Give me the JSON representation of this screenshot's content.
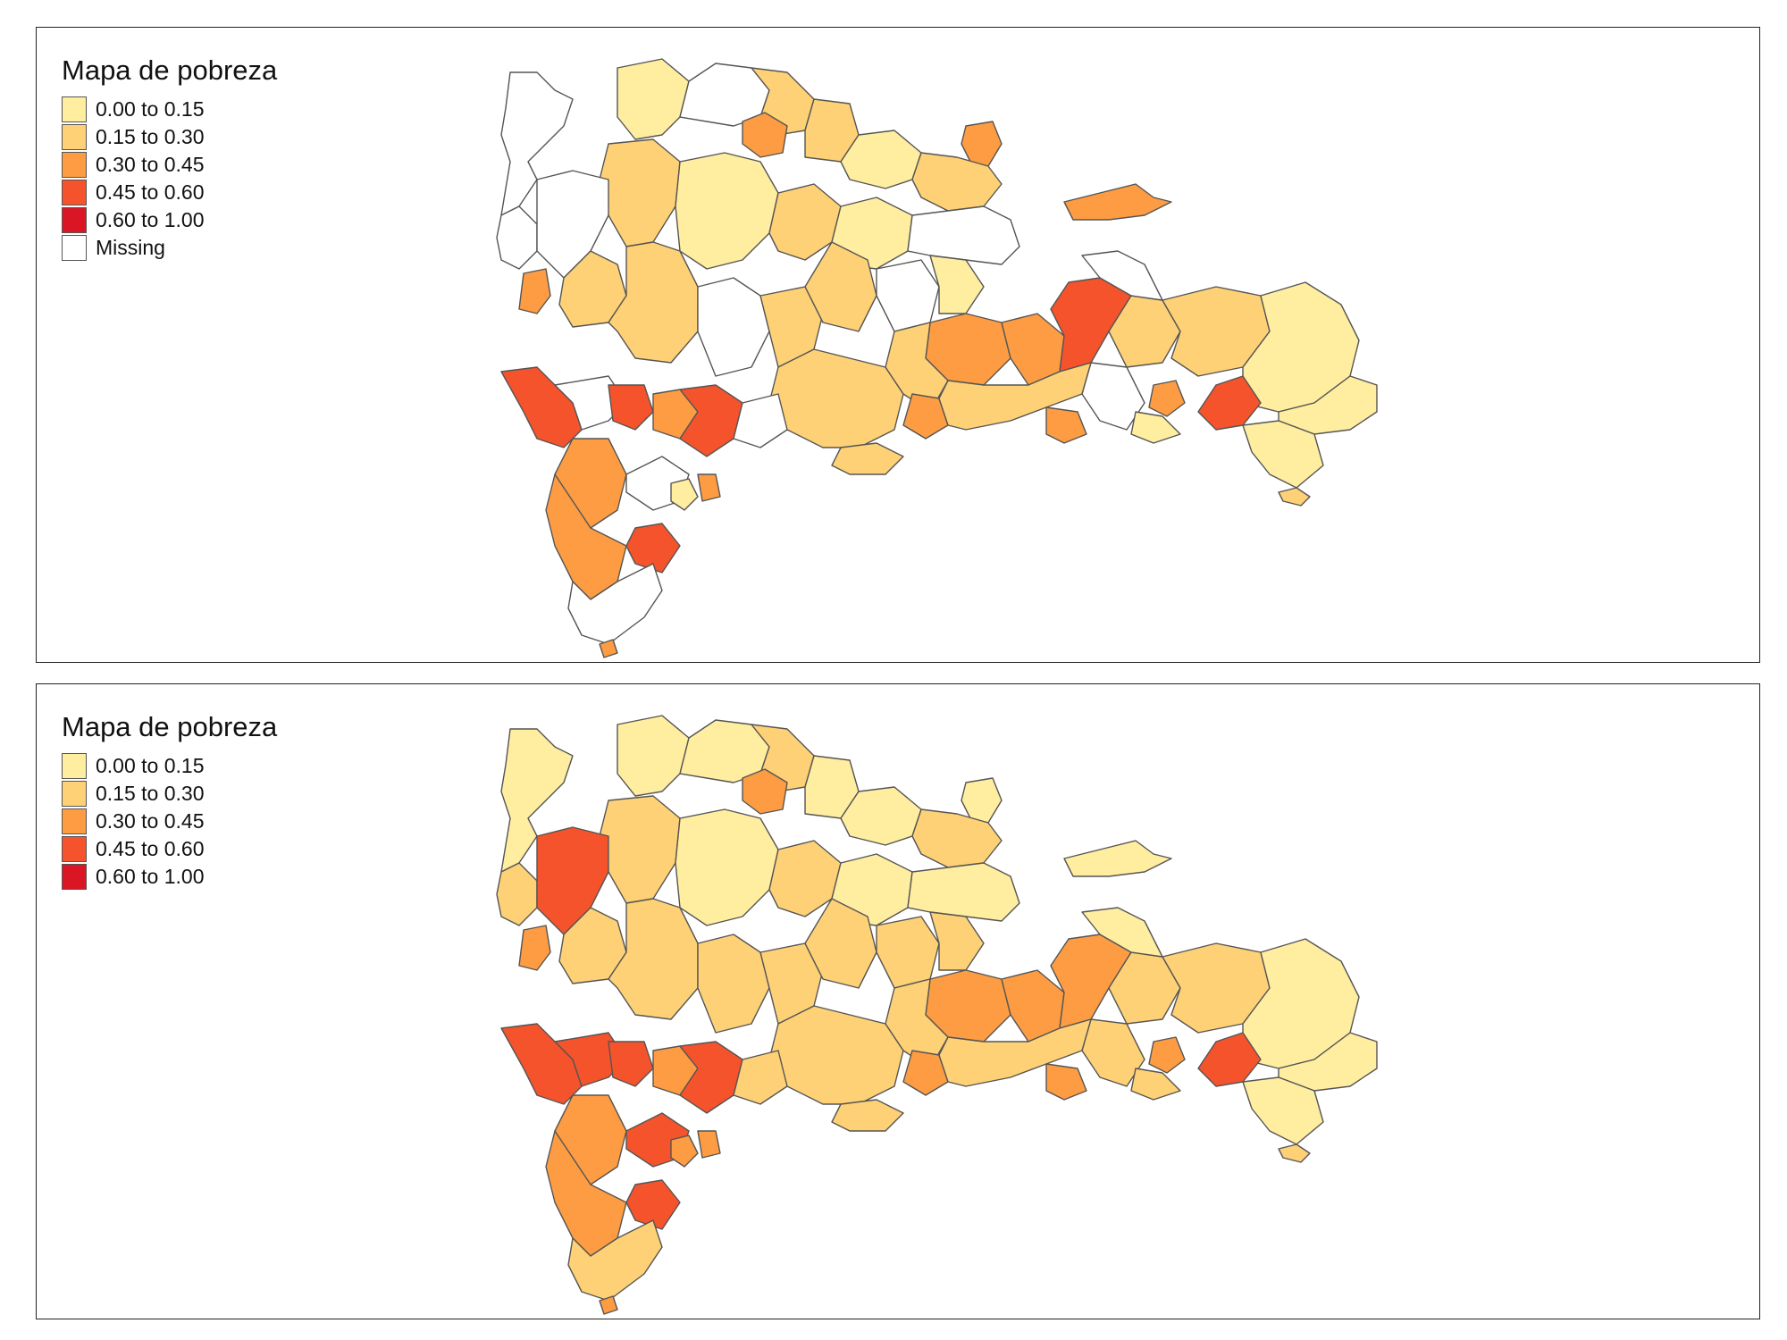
{
  "maps": [
    {
      "legend": {
        "title": "Mapa de pobreza",
        "items": [
          {
            "label": "0.00 to 0.15",
            "color": "#FFEDA0"
          },
          {
            "label": "0.15 to 0.30",
            "color": "#FED176"
          },
          {
            "label": "0.30 to 0.45",
            "color": "#FD9C42"
          },
          {
            "label": "0.45 to 0.60",
            "color": "#F5532B"
          },
          {
            "label": "0.60 to 1.00",
            "color": "#DA1625"
          },
          {
            "label": "Missing",
            "color": "#FFFFFF"
          }
        ]
      }
    },
    {
      "legend": {
        "title": "Mapa de pobreza",
        "items": [
          {
            "label": "0.00 to 0.15",
            "color": "#FFEDA0"
          },
          {
            "label": "0.15 to 0.30",
            "color": "#FED176"
          },
          {
            "label": "0.30 to 0.45",
            "color": "#FD9C42"
          },
          {
            "label": "0.45 to 0.60",
            "color": "#F5532B"
          },
          {
            "label": "0.60 to 1.00",
            "color": "#DA1625"
          }
        ]
      }
    }
  ]
}
